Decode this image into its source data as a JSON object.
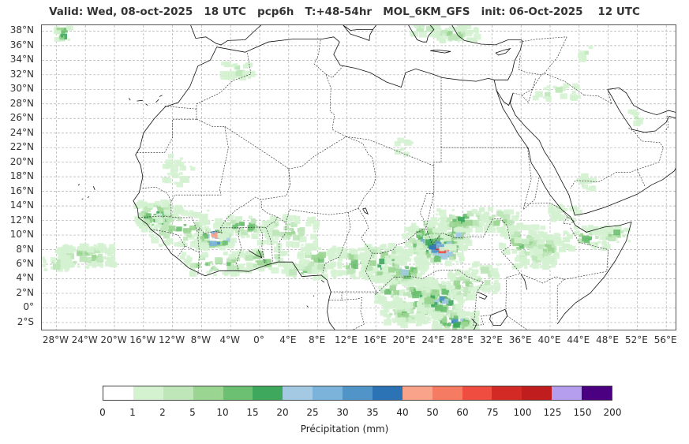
{
  "title": "Valid: Wed, 08-oct-2025   18 UTC   pcp6h   T:+48-54hr   MOL_6KM_GFS   init: 06-Oct-2025    12 UTC",
  "map": {
    "lon_min": -30,
    "lon_max": 57.5,
    "lat_min": -3.2,
    "lat_max": 38.8,
    "lat_labels": [
      "38°N",
      "36°N",
      "34°N",
      "32°N",
      "30°N",
      "28°N",
      "26°N",
      "24°N",
      "22°N",
      "20°N",
      "18°N",
      "16°N",
      "14°N",
      "12°N",
      "10°N",
      "8°N",
      "6°N",
      "4°N",
      "2°N",
      "0°",
      "2°S"
    ],
    "lat_values": [
      38,
      36,
      34,
      32,
      30,
      28,
      26,
      24,
      22,
      20,
      18,
      16,
      14,
      12,
      10,
      8,
      6,
      4,
      2,
      0,
      -2
    ],
    "lon_labels": [
      "28°W",
      "24°W",
      "20°W",
      "16°W",
      "12°W",
      "8°W",
      "4°W",
      "0°",
      "4°E",
      "8°E",
      "12°E",
      "16°E",
      "20°E",
      "24°E",
      "28°E",
      "32°E",
      "36°E",
      "40°E",
      "44°E",
      "48°E",
      "52°E",
      "56°E"
    ],
    "lon_values": [
      -28,
      -24,
      -20,
      -16,
      -12,
      -8,
      -4,
      0,
      4,
      8,
      12,
      16,
      20,
      24,
      28,
      32,
      36,
      40,
      44,
      48,
      52,
      56
    ],
    "gridlines": true
  },
  "colorbar": {
    "ticks": [
      "0",
      "1",
      "2",
      "5",
      "10",
      "15",
      "20",
      "25",
      "30",
      "35",
      "40",
      "50",
      "60",
      "75",
      "100",
      "125",
      "150",
      "200"
    ],
    "colors": [
      "#ffffff",
      "#d4f2d0",
      "#bee6b9",
      "#9bd592",
      "#6cc071",
      "#3ea85c",
      "#a3cae2",
      "#7bb3da",
      "#5194c8",
      "#2b73b5",
      "#f9a38b",
      "#f57b63",
      "#ef4d3f",
      "#d42a25",
      "#c01d1e",
      "#b59eed",
      "#4b0082"
    ],
    "label": "Précipitation (mm)"
  }
}
